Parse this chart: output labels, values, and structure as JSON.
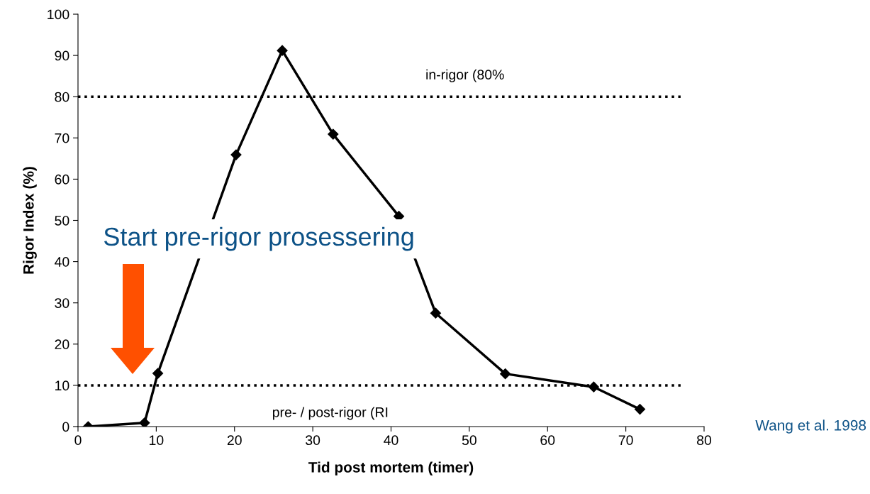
{
  "chart_data": {
    "type": "line",
    "xlabel": "Tid post mortem (timer)",
    "ylabel": "Rigor Index (%)",
    "x": [
      1.3,
      8.5,
      10.2,
      20.2,
      26.1,
      32.6,
      41.0,
      45.7,
      54.6,
      65.9,
      71.8
    ],
    "series": [
      {
        "color": "#000000",
        "values": [
          0,
          0.9,
          12.9,
          65.9,
          91.2,
          70.9,
          51.0,
          27.5,
          12.8,
          9.6,
          4.2
        ]
      }
    ],
    "marker": "diamond",
    "line_style": "solid",
    "grid": false,
    "xlim": [
      0,
      80
    ],
    "ylim": [
      0,
      100
    ],
    "xticks": [
      0,
      10,
      20,
      30,
      40,
      50,
      60,
      70,
      80
    ],
    "yticks": [
      0,
      10,
      20,
      30,
      40,
      50,
      60,
      70,
      80,
      90,
      100
    ],
    "ref_lines": [
      {
        "axis": "y",
        "value": 80,
        "label": "in-rigor (80%",
        "color": "#000000",
        "line_style": "dotted"
      },
      {
        "axis": "y",
        "value": 10,
        "label": "pre- / post-rigor (RI",
        "color": "#000000",
        "line_style": "dotted"
      }
    ],
    "annotations": [
      "Start pre-rigor prosessering",
      "Wang et al. 1998"
    ]
  }
}
